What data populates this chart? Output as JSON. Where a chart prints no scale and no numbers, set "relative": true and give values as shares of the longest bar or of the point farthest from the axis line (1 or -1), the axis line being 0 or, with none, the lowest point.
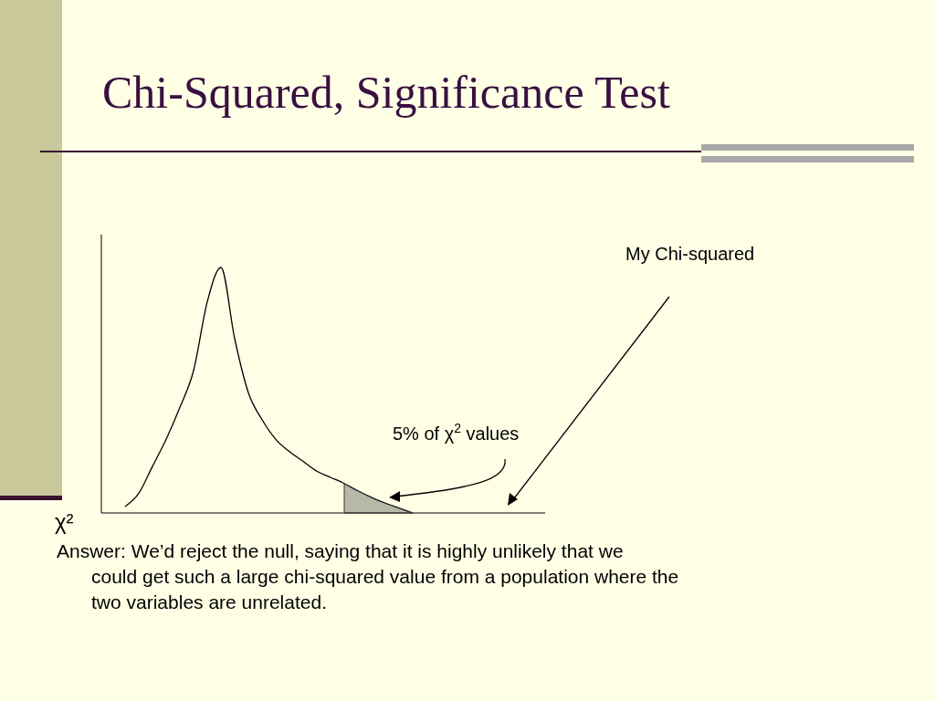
{
  "chart_data": {
    "type": "line",
    "title": "Chi-Squared, Significance Test",
    "xlabel": "χ²",
    "relative": true,
    "categories": [
      null,
      null,
      null,
      null,
      null,
      null,
      null,
      null,
      null,
      null,
      null,
      null,
      null,
      null,
      null,
      null,
      null,
      null,
      null,
      null,
      null,
      null,
      null,
      null,
      null,
      null,
      null,
      null,
      null,
      null,
      null
    ],
    "series": [
      {
        "color": "#000000",
        "values": [
          0.026,
          0.08,
          0.19,
          0.3,
          0.43,
          0.58,
          0.86,
          1.0,
          0.71,
          0.49,
          0.38,
          0.3,
          0.25,
          0.21,
          0.17,
          0.145,
          0.12,
          0.09,
          0.063,
          0.04,
          0.02,
          0,
          null,
          null,
          null,
          null,
          null,
          null,
          null,
          null,
          null
        ]
      },
      {
        "type": "area",
        "color": "#333333",
        "values": [
          null,
          null,
          null,
          null,
          null,
          null,
          null,
          null,
          null,
          null,
          null,
          null,
          null,
          null,
          null,
          null,
          0.12,
          0.09,
          0.063,
          0.04,
          0.02,
          0,
          null,
          null,
          null,
          null,
          null,
          null,
          null,
          null,
          null
        ]
      }
    ],
    "annotations": [
      "My Chi-squared",
      "5% of χ$^{2}$ values",
      "Answer:  We’d reject the null, saying that it is highly unlikely that we could get such a large chi-squared value from a population where the two variables are unrelated."
    ]
  }
}
